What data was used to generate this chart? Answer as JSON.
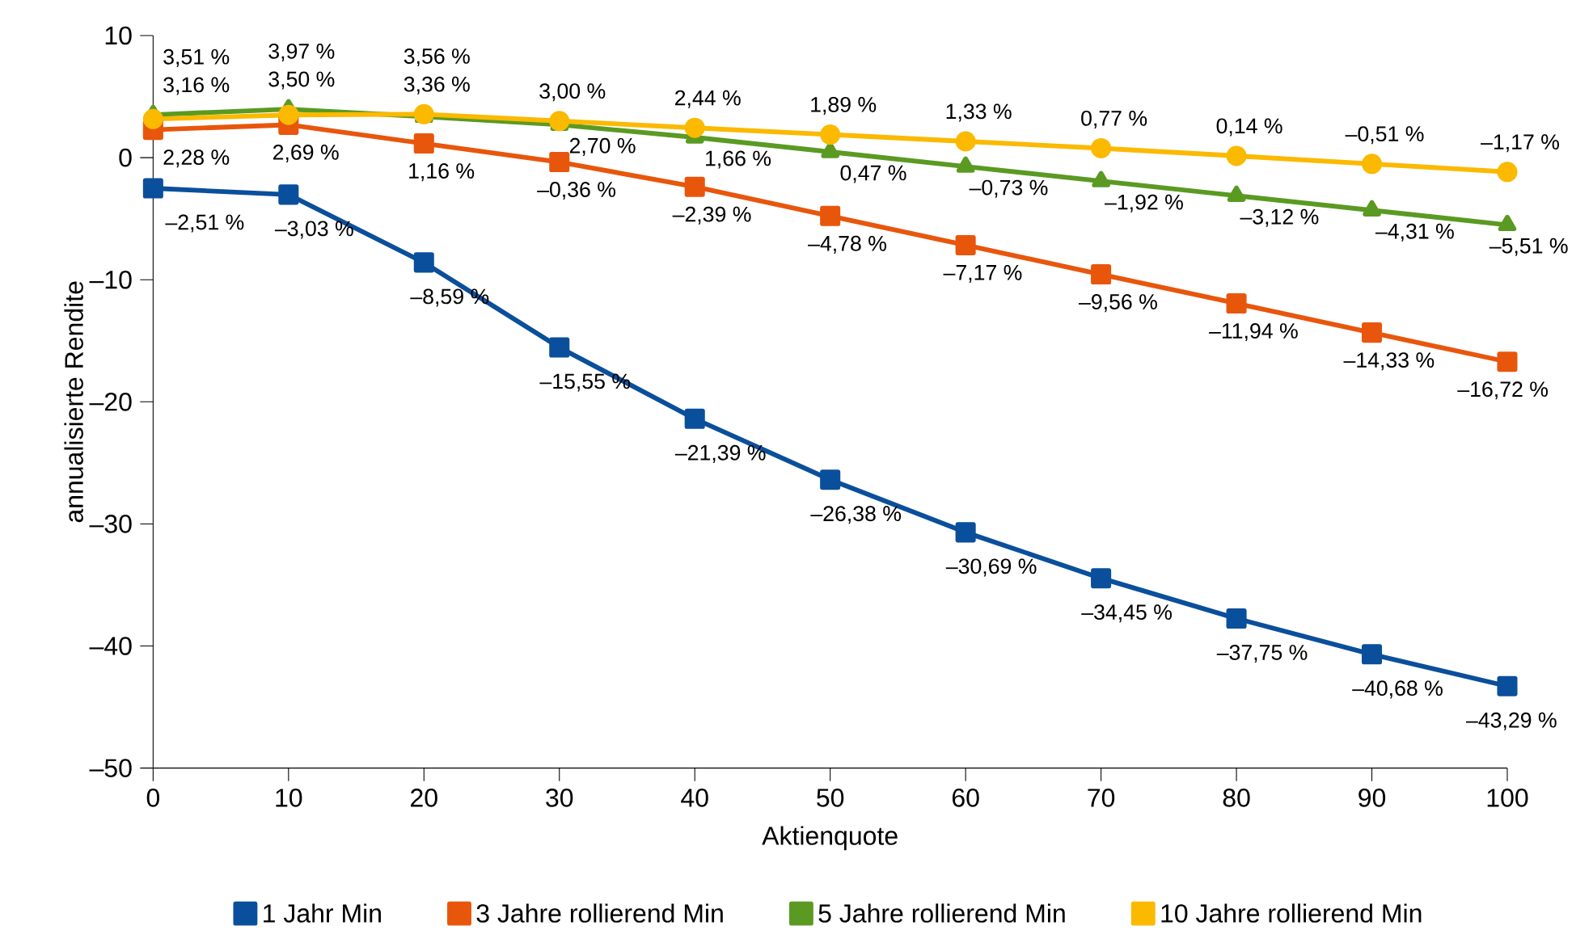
{
  "chart_data": {
    "type": "line",
    "xlabel": "Aktienquote",
    "ylabel": "annualisierte Rendite",
    "x": [
      0,
      10,
      20,
      30,
      40,
      50,
      60,
      70,
      80,
      90,
      100
    ],
    "xlim": [
      0,
      100
    ],
    "xticks": [
      0,
      10,
      20,
      30,
      40,
      50,
      60,
      70,
      80,
      90,
      100
    ],
    "ylim": [
      -50,
      10
    ],
    "yticks": [
      {
        "value": -50,
        "label": "–50"
      },
      {
        "value": -40,
        "label": "–40"
      },
      {
        "value": -30,
        "label": "–30"
      },
      {
        "value": -20,
        "label": "–20"
      },
      {
        "value": -10,
        "label": "–10"
      },
      0,
      10
    ],
    "grid": false,
    "legend": "bottom",
    "line_style": "solid",
    "series": [
      {
        "name": "1 Jahr Min",
        "color": "#0a4f9c",
        "marker": "square",
        "values": [
          -2.51,
          -3.03,
          -8.59,
          -15.55,
          -21.39,
          -26.38,
          -30.69,
          -34.45,
          -37.75,
          -40.68,
          -43.29
        ],
        "value_labels": [
          "–2,51 %",
          "–3,03 %",
          "–8,59 %",
          "–15,55 %",
          "–21,39 %",
          "–26,38 %",
          "–30,69 %",
          "–34,45 %",
          "–37,75 %",
          "–40,68 %",
          "–43,29 %"
        ]
      },
      {
        "name": "3 Jahre rollierend Min",
        "color": "#e8560c",
        "marker": "square",
        "values": [
          2.28,
          2.69,
          1.16,
          -0.36,
          -2.39,
          -4.78,
          -7.17,
          -9.56,
          -11.94,
          -14.33,
          -16.72
        ],
        "value_labels": [
          "2,28 %",
          "2,69 %",
          "1,16 %",
          "–0,36 %",
          "–2,39 %",
          "–4,78 %",
          "–7,17 %",
          "–9,56 %",
          "–11,94 %",
          "–14,33 %",
          "–16,72 %"
        ]
      },
      {
        "name": "5 Jahre rollierend Min",
        "color": "#5a9a22",
        "marker": "triangle",
        "values": [
          3.51,
          3.97,
          3.36,
          2.7,
          1.66,
          0.47,
          -0.73,
          -1.92,
          -3.12,
          -4.31,
          -5.51
        ],
        "value_labels": [
          "3,51 %",
          "3,97 %",
          "3,36 %",
          "2,70 %",
          "1,66 %",
          "0,47 %",
          "–0,73 %",
          "–1,92 %",
          "–3,12 %",
          "–4,31 %",
          "–5,51 %"
        ]
      },
      {
        "name": "10 Jahre rollierend Min",
        "color": "#fbb900",
        "marker": "circle",
        "values": [
          3.16,
          3.5,
          3.56,
          3.0,
          2.44,
          1.89,
          1.33,
          0.77,
          0.14,
          -0.51,
          -1.17
        ],
        "value_labels": [
          "3,16 %",
          "3,50 %",
          "3,56 %",
          "3,00 %",
          "2,44 %",
          "1,89 %",
          "1,33 %",
          "0,77 %",
          "0,14 %",
          "–0,51 %",
          "–1,17 %"
        ]
      }
    ]
  }
}
